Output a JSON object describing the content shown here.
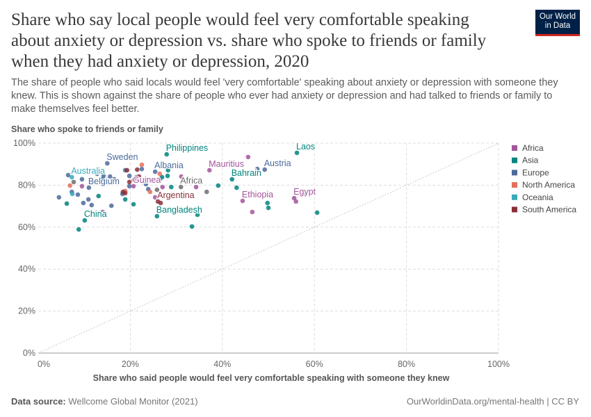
{
  "header": {
    "title": "Share who say local people would feel very comfortable speaking about anxiety or depression vs. share who spoke to friends or family when they had anxiety or depression, 2020",
    "subtitle": "The share of people who said locals would feel 'very comfortable' speaking about anxiety or depression with someone they knew. This is shown against the share of people who ever had anxiety or depression and had talked to friends or family to make themselves feel better.",
    "logo": "Our World in Data"
  },
  "footer": {
    "source_label": "Data source:",
    "source": "Wellcome Global Monitor (2021)",
    "license": "OurWorldinData.org/mental-health | CC BY"
  },
  "chart_data": {
    "type": "scatter",
    "xlabel": "Share who said people would feel very comfortable speaking with someone they knew",
    "ylabel": "Share who spoke to friends or family",
    "xlim": [
      0,
      100
    ],
    "ylim": [
      0,
      100
    ],
    "xticks": [
      "0%",
      "20%",
      "40%",
      "60%",
      "80%",
      "100%"
    ],
    "yticks": [
      "0%",
      "20%",
      "40%",
      "60%",
      "80%",
      "100%"
    ],
    "grid": true,
    "reference_line": "y = x (dotted)",
    "legend_position": "right",
    "colors": {
      "Africa": "#a2559c",
      "Asia": "#00847e",
      "Europe": "#4c6a9c",
      "North America": "#e56e5a",
      "Oceania": "#38aaba",
      "South America": "#883039",
      "Region": "#6d6d6d"
    },
    "legend": [
      "Africa",
      "Asia",
      "Europe",
      "North America",
      "Oceania",
      "South America"
    ],
    "points": [
      {
        "label": "Philippines",
        "x": 27.9,
        "y": 94.7,
        "g": "Asia"
      },
      {
        "label": "Laos",
        "x": 56.2,
        "y": 95.4,
        "g": "Asia"
      },
      {
        "label": "Bangladesh",
        "x": 25.8,
        "y": 65.2,
        "g": "Asia"
      },
      {
        "label": "China",
        "x": 10.1,
        "y": 63.2,
        "g": "Asia"
      },
      {
        "label": "Bahrain",
        "x": 42.1,
        "y": 82.8,
        "g": "Asia"
      },
      {
        "x": 43.1,
        "y": 78.8,
        "g": "Asia"
      },
      {
        "x": 50.0,
        "y": 69.2,
        "g": "Asia"
      },
      {
        "x": 49.8,
        "y": 71.5,
        "g": "Asia"
      },
      {
        "x": 58.0,
        "y": 76.5,
        "g": "Asia"
      },
      {
        "x": 60.6,
        "y": 66.9,
        "g": "Asia"
      },
      {
        "x": 33.4,
        "y": 60.3,
        "g": "Asia"
      },
      {
        "x": 8.8,
        "y": 58.9,
        "g": "Asia"
      },
      {
        "x": 39.1,
        "y": 79.8,
        "g": "Asia"
      },
      {
        "x": 34.6,
        "y": 65.9,
        "g": "Asia"
      },
      {
        "x": 28.9,
        "y": 79.1,
        "g": "Asia"
      },
      {
        "x": 28.1,
        "y": 84.4,
        "g": "Asia"
      },
      {
        "x": 28.2,
        "y": 87.1,
        "g": "Asia"
      },
      {
        "x": 20.7,
        "y": 70.9,
        "g": "Asia"
      },
      {
        "x": 18.9,
        "y": 73.2,
        "g": "Asia"
      },
      {
        "x": 6.2,
        "y": 71.2,
        "g": "Asia"
      },
      {
        "x": 13.1,
        "y": 74.8,
        "g": "Asia"
      },
      {
        "x": 14.0,
        "y": 82.8,
        "g": "Asia"
      },
      {
        "x": 26.9,
        "y": 83.8,
        "g": "Asia"
      },
      {
        "label": "Sweden",
        "x": 15.0,
        "y": 90.4,
        "g": "Europe"
      },
      {
        "label": "Albania",
        "x": 25.4,
        "y": 86.4,
        "g": "Europe"
      },
      {
        "label": "Austria",
        "x": 49.2,
        "y": 87.4,
        "g": "Europe"
      },
      {
        "x": 47.6,
        "y": 87.7,
        "g": "Europe"
      },
      {
        "label": "Belgium",
        "x": 11.0,
        "y": 78.8,
        "g": "Europe"
      },
      {
        "x": 4.5,
        "y": 74.2,
        "g": "Europe"
      },
      {
        "x": 6.5,
        "y": 84.8,
        "g": "Europe"
      },
      {
        "x": 9.5,
        "y": 82.8,
        "g": "Europe"
      },
      {
        "x": 7.3,
        "y": 76.8,
        "g": "Europe"
      },
      {
        "x": 8.6,
        "y": 75.5,
        "g": "Europe"
      },
      {
        "x": 9.8,
        "y": 71.5,
        "g": "Europe"
      },
      {
        "x": 10.9,
        "y": 73.2,
        "g": "Europe"
      },
      {
        "x": 11.6,
        "y": 70.5,
        "g": "Europe"
      },
      {
        "x": 12.8,
        "y": 85.4,
        "g": "Europe"
      },
      {
        "x": 14.2,
        "y": 84.4,
        "g": "Europe"
      },
      {
        "x": 15.6,
        "y": 84.1,
        "g": "Europe"
      },
      {
        "x": 16.5,
        "y": 82.8,
        "g": "Europe"
      },
      {
        "x": 15.9,
        "y": 70.2,
        "g": "Europe"
      },
      {
        "x": 18.9,
        "y": 87.1,
        "g": "Europe"
      },
      {
        "x": 19.8,
        "y": 84.4,
        "g": "Europe"
      },
      {
        "x": 21.3,
        "y": 83.8,
        "g": "Europe"
      },
      {
        "x": 22.5,
        "y": 87.7,
        "g": "Europe"
      },
      {
        "x": 23.4,
        "y": 80.5,
        "g": "Europe"
      },
      {
        "x": 23.9,
        "y": 78.1,
        "g": "Europe"
      },
      {
        "x": 24.9,
        "y": 82.1,
        "g": "Europe"
      },
      {
        "x": 26.4,
        "y": 82.8,
        "g": "Europe"
      },
      {
        "x": 18.3,
        "y": 75.8,
        "g": "Europe"
      },
      {
        "x": 19.8,
        "y": 79.5,
        "g": "Europe"
      },
      {
        "label": "Mauritius",
        "x": 37.2,
        "y": 87.1,
        "g": "Africa"
      },
      {
        "label": "Guinea",
        "x": 20.7,
        "y": 79.5,
        "g": "Africa"
      },
      {
        "label": "Ethiopia",
        "x": 44.4,
        "y": 72.5,
        "g": "Africa"
      },
      {
        "label": "Egypt",
        "x": 55.6,
        "y": 73.8,
        "g": "Africa"
      },
      {
        "x": 56.0,
        "y": 72.2,
        "g": "Africa"
      },
      {
        "x": 45.6,
        "y": 93.4,
        "g": "Africa"
      },
      {
        "x": 46.5,
        "y": 67.2,
        "g": "Africa"
      },
      {
        "x": 27.0,
        "y": 79.1,
        "g": "Africa"
      },
      {
        "x": 31.1,
        "y": 84.1,
        "g": "Africa"
      },
      {
        "x": 34.3,
        "y": 79.1,
        "g": "Africa"
      },
      {
        "x": 25.4,
        "y": 74.2,
        "g": "Africa"
      },
      {
        "x": 14.0,
        "y": 67.2,
        "g": "Africa"
      },
      {
        "x": 9.5,
        "y": 79.5,
        "g": "Africa"
      },
      {
        "label": "Africa",
        "x": 31.0,
        "y": 79.1,
        "g": "Region"
      },
      {
        "x": 36.6,
        "y": 76.8,
        "g": "Region"
      },
      {
        "x": 7.7,
        "y": 81.5,
        "g": "Region"
      },
      {
        "x": 25.8,
        "y": 77.8,
        "g": "Region"
      },
      {
        "x": 6.9,
        "y": 79.8,
        "g": "North America"
      },
      {
        "x": 22.5,
        "y": 89.7,
        "g": "North America"
      },
      {
        "x": 26.4,
        "y": 85.4,
        "g": "North America"
      },
      {
        "x": 18.9,
        "y": 77.2,
        "g": "North America"
      },
      {
        "x": 24.3,
        "y": 76.8,
        "g": "North America"
      },
      {
        "label": "Australia",
        "x": 7.3,
        "y": 83.8,
        "g": "Oceania"
      },
      {
        "x": 7.4,
        "y": 75.8,
        "g": "Oceania"
      },
      {
        "label": "Argentina",
        "x": 26.0,
        "y": 72.2,
        "g": "South America"
      },
      {
        "x": 26.6,
        "y": 71.5,
        "g": "South America"
      },
      {
        "x": 19.3,
        "y": 87.1,
        "g": "South America"
      },
      {
        "x": 21.5,
        "y": 87.4,
        "g": "South America"
      },
      {
        "x": 20.8,
        "y": 82.5,
        "g": "South America"
      },
      {
        "x": 18.9,
        "y": 76.2,
        "g": "South America"
      },
      {
        "x": 18.4,
        "y": 76.8,
        "g": "South America"
      },
      {
        "x": 21.9,
        "y": 84.1,
        "g": "South America"
      },
      {
        "x": 26.1,
        "y": 82.8,
        "g": "South America"
      },
      {
        "x": 19.8,
        "y": 81.5,
        "g": "South America"
      }
    ]
  }
}
